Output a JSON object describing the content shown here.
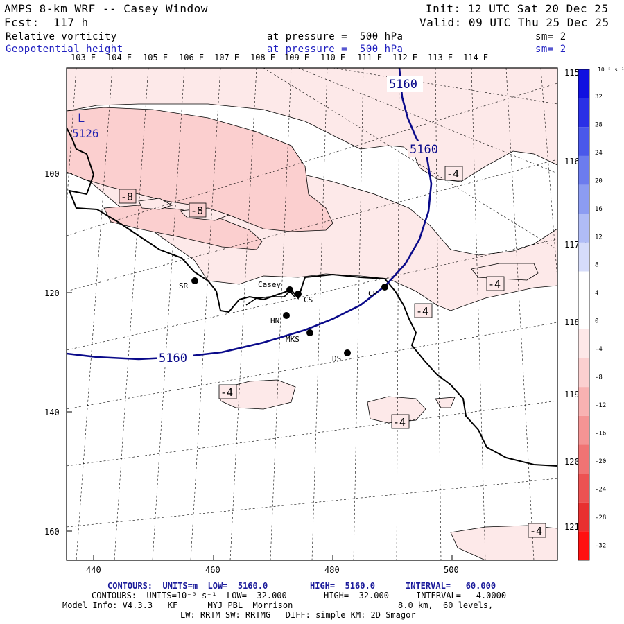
{
  "header": {
    "model_title": "AMPS 8-km WRF -- Casey Window",
    "init": "Init: 12 UTC Sat 20 Dec 25",
    "forecast": "Fcst:  117 h",
    "valid": "Valid: 09 UTC Thu 25 Dec 25",
    "field1_name": "Relative vorticity",
    "field1_level": "at pressure =  500 hPa",
    "field1_sm": "sm= 2",
    "field2_name": "Geopotential height",
    "field2_level": "at pressure =  500 hPa",
    "field2_sm": "sm= 2"
  },
  "axes": {
    "top_lon_labels": [
      "103 E",
      "104 E",
      "105 E",
      "106 E",
      "107 E",
      "108 E",
      "109 E",
      "110 E",
      "111 E",
      "112 E",
      "113 E",
      "114 E"
    ],
    "right_lon_labels": [
      "115 E",
      "116 E",
      "117 E",
      "118 E",
      "119 E",
      "120 E",
      "121 E"
    ],
    "x_ticks": [
      "440",
      "460",
      "480",
      "500"
    ],
    "y_ticks": [
      "100",
      "120",
      "140",
      "160"
    ]
  },
  "colorbar": {
    "unit": "10⁻⁵ s⁻¹",
    "labels": [
      "32",
      "28",
      "24",
      "20",
      "16",
      "12",
      "8",
      "4",
      "0",
      "-4",
      "-8",
      "-12",
      "-16",
      "-20",
      "-24",
      "-28",
      "-32"
    ],
    "colors": [
      "#1010e0",
      "#2a30e6",
      "#4a58ea",
      "#6c7cee",
      "#8c9cf2",
      "#b0bcf6",
      "#d6dcfa",
      "#ffffff",
      "#ffffff",
      "#fde8e8",
      "#fbd0d0",
      "#f8b2b2",
      "#f49494",
      "#f07474",
      "#ec5252",
      "#e83030",
      "#ff1010"
    ]
  },
  "map": {
    "height_labels": [
      "5160",
      "5160",
      "5160"
    ],
    "low_center": {
      "marker": "L",
      "value": "5126"
    },
    "vorticity_labels": [
      "-8",
      "-8",
      "-4",
      "-4",
      "-4",
      "-4",
      "-4",
      "-4"
    ],
    "stations": [
      {
        "code": "SR"
      },
      {
        "code": "Casey"
      },
      {
        "code": "CS"
      },
      {
        "code": "HN"
      },
      {
        "code": "MKS"
      },
      {
        "code": "CP"
      },
      {
        "code": "DS"
      }
    ]
  },
  "footer": {
    "line1_a": "CONTOURS:  UNITS=m  LOW=  5160.0",
    "line1_b": "HIGH=  5160.0",
    "line1_c": "INTERVAL=   60.000",
    "line2_a": "CONTOURS:  UNITS=10⁻⁵ s⁻¹  LOW= -32.000",
    "line2_b": "HIGH=  32.000",
    "line2_c": "INTERVAL=   4.0000",
    "line3_a": "Model Info: V4.3.3   KF      MYJ PBL  Morrison",
    "line3_b": "8.0 km,  60 levels,",
    "line4": "LW: RRTM SW: RRTMG   DIFF: simple KM: 2D Smagor"
  }
}
